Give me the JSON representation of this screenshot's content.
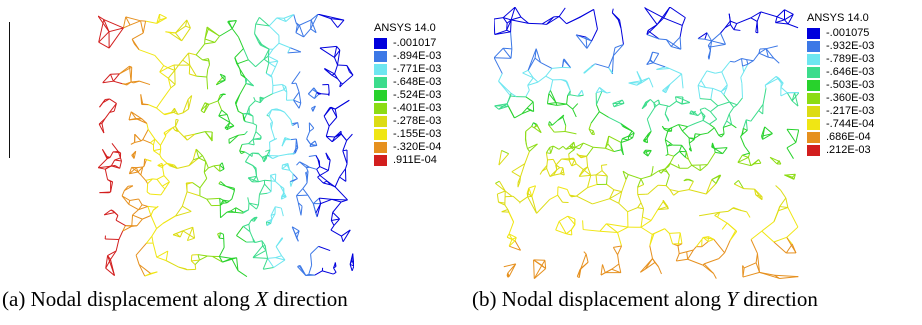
{
  "panels": [
    {
      "id": "a",
      "caption": {
        "label": "(a)",
        "text": "Nodal displacement along",
        "axis": "X",
        "suffix": "direction"
      },
      "legend": {
        "title": "ANSYS 14.0",
        "items": [
          {
            "value": "-.001017",
            "color": "#0000dc"
          },
          {
            "value": "-.894E-03",
            "color": "#3c78e6"
          },
          {
            "value": "-.771E-03",
            "color": "#6ee6f0"
          },
          {
            "value": "-.648E-03",
            "color": "#3cdc8c"
          },
          {
            "value": "-.524E-03",
            "color": "#28d22c"
          },
          {
            "value": "-.401E-03",
            "color": "#8cdc14"
          },
          {
            "value": "-.278E-03",
            "color": "#dcdc14"
          },
          {
            "value": "-.155E-03",
            "color": "#f0e614"
          },
          {
            "value": "-.320E-04",
            "color": "#e6901e"
          },
          {
            "value": ".911E-04",
            "color": "#d21e1e"
          }
        ]
      }
    },
    {
      "id": "b",
      "caption": {
        "label": "(b)",
        "text": "Nodal displacement along",
        "axis": "Y",
        "suffix": "direction"
      },
      "legend": {
        "title": "ANSYS 14.0",
        "items": [
          {
            "value": "-.001075",
            "color": "#0000dc"
          },
          {
            "value": "-.932E-03",
            "color": "#3c78e6"
          },
          {
            "value": "-.789E-03",
            "color": "#6ee6f0"
          },
          {
            "value": "-.646E-03",
            "color": "#3cdc8c"
          },
          {
            "value": "-.503E-03",
            "color": "#28d22c"
          },
          {
            "value": "-.360E-03",
            "color": "#8cdc14"
          },
          {
            "value": "-.217E-03",
            "color": "#dcdc14"
          },
          {
            "value": "-.744E-04",
            "color": "#f0e614"
          },
          {
            "value": ".686E-04",
            "color": "#e6901e"
          },
          {
            "value": ".212E-03",
            "color": "#d21e1e"
          }
        ]
      }
    }
  ]
}
